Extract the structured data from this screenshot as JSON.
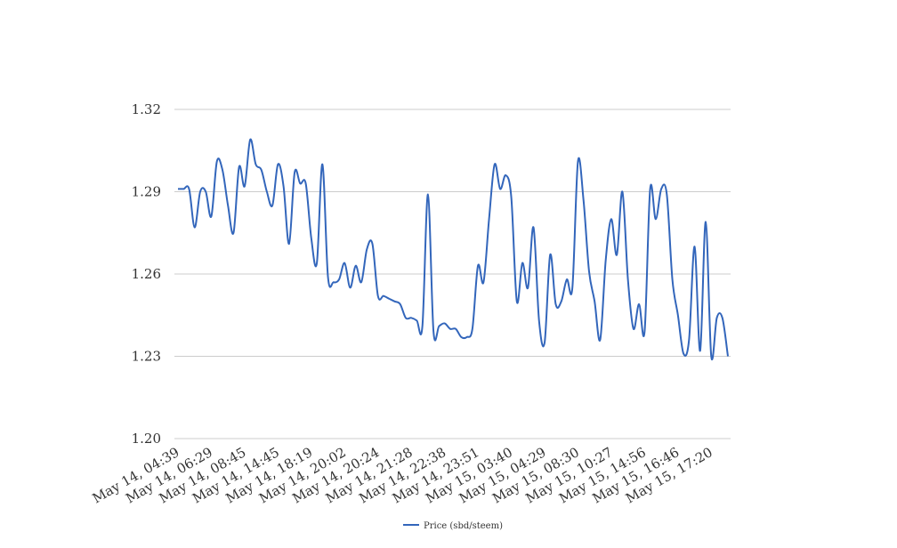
{
  "chart_data": {
    "type": "line",
    "categories": [
      "May 14, 04:39",
      null,
      null,
      null,
      null,
      null,
      "May 14, 06:29",
      null,
      null,
      null,
      null,
      null,
      "May 14, 08:45",
      null,
      null,
      null,
      null,
      null,
      "May 14, 14:45",
      null,
      null,
      null,
      null,
      null,
      "May 14, 18:19",
      null,
      null,
      null,
      null,
      null,
      "May 14, 20:02",
      null,
      null,
      null,
      null,
      null,
      "May 14, 20:24",
      null,
      null,
      null,
      null,
      null,
      "May 14, 21:28",
      null,
      null,
      null,
      null,
      null,
      "May 14, 22:38",
      null,
      null,
      null,
      null,
      null,
      "May 14, 23:51",
      null,
      null,
      null,
      null,
      null,
      "May 15, 03:40",
      null,
      null,
      null,
      null,
      null,
      "May 15, 04:29",
      null,
      null,
      null,
      null,
      null,
      "May 15, 08:30",
      null,
      null,
      null,
      null,
      null,
      "May 15, 10:27",
      null,
      null,
      null,
      null,
      null,
      "May 15, 14:56",
      null,
      null,
      null,
      null,
      null,
      "May 15, 16:46",
      null,
      null,
      null,
      null,
      null,
      "May 15, 17:20",
      null,
      null,
      null
    ],
    "series": [
      {
        "name": "Price (sbd/steem)",
        "color": "#3366bb",
        "values": [
          1.291,
          1.291,
          1.291,
          1.277,
          1.29,
          1.29,
          1.281,
          1.301,
          1.298,
          1.285,
          1.275,
          1.299,
          1.292,
          1.309,
          1.3,
          1.298,
          1.29,
          1.285,
          1.3,
          1.292,
          1.271,
          1.297,
          1.293,
          1.293,
          1.273,
          1.264,
          1.3,
          1.259,
          1.257,
          1.258,
          1.264,
          1.255,
          1.263,
          1.257,
          1.269,
          1.271,
          1.252,
          1.252,
          1.251,
          1.25,
          1.249,
          1.244,
          1.244,
          1.243,
          1.241,
          1.289,
          1.239,
          1.241,
          1.242,
          1.24,
          1.24,
          1.237,
          1.237,
          1.24,
          1.263,
          1.257,
          1.28,
          1.3,
          1.291,
          1.296,
          1.288,
          1.25,
          1.264,
          1.255,
          1.277,
          1.243,
          1.235,
          1.267,
          1.249,
          1.25,
          1.258,
          1.255,
          1.301,
          1.287,
          1.261,
          1.25,
          1.236,
          1.265,
          1.28,
          1.267,
          1.29,
          1.258,
          1.24,
          1.249,
          1.239,
          1.291,
          1.28,
          1.291,
          1.289,
          1.258,
          1.245,
          1.231,
          1.236,
          1.27,
          1.232,
          1.279,
          1.23,
          1.244,
          1.244,
          1.23
        ]
      }
    ],
    "ylim": [
      1.2,
      1.32
    ],
    "yticks": [
      {
        "value": 1.2,
        "label": "1.20"
      },
      1.23,
      1.26,
      1.29,
      1.32
    ],
    "grid": true,
    "legend": "bottom"
  }
}
